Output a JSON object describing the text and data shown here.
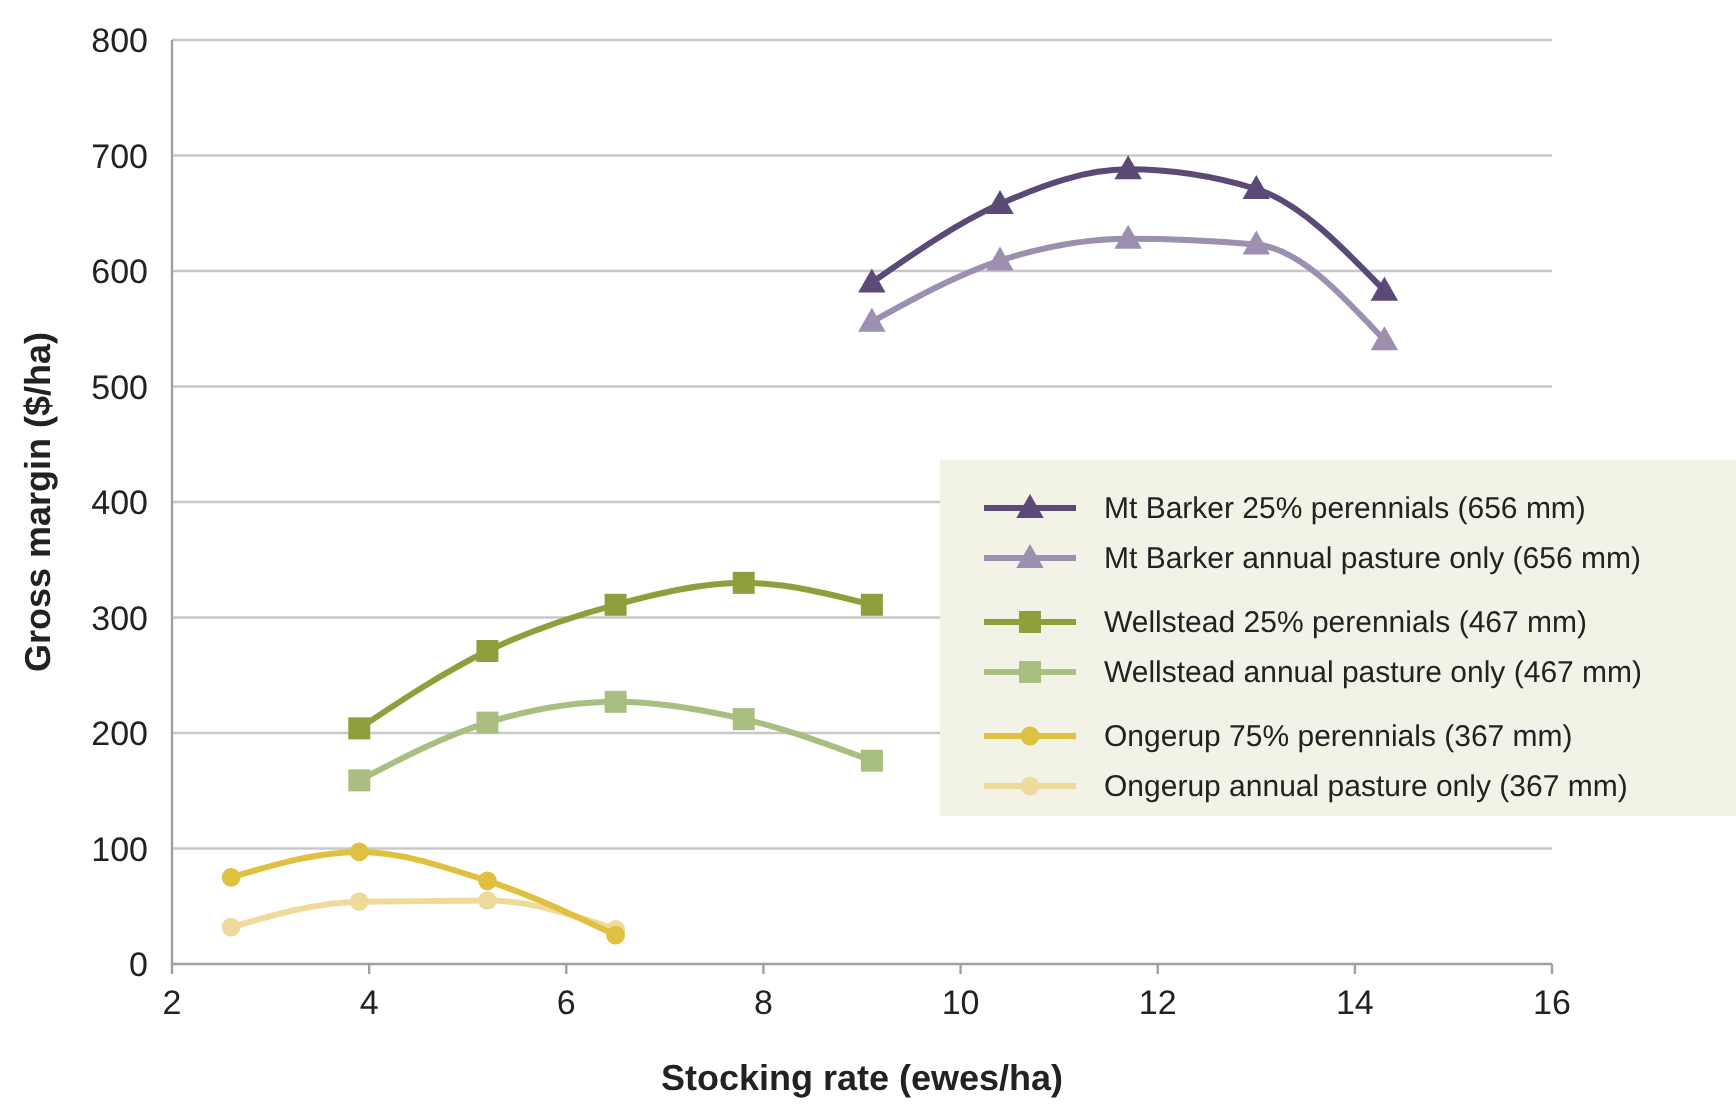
{
  "chart_data": {
    "type": "line",
    "xlabel": "Stocking rate (ewes/ha)",
    "ylabel": "Gross margin ($/ha)",
    "xlim": [
      2,
      16
    ],
    "xticks": [
      2,
      4,
      6,
      8,
      10,
      12,
      14,
      16
    ],
    "ylim": [
      0,
      800
    ],
    "yticks": [
      0,
      100,
      200,
      300,
      400,
      500,
      600,
      700,
      800
    ],
    "grid": "y",
    "legend": "right",
    "line_style": "solid",
    "series": [
      {
        "name": "Mt Barker 25% perennials (656 mm)",
        "color": "#5b4a78",
        "marker": "triangle",
        "x": [
          9.1,
          10.4,
          11.7,
          13.0,
          14.3
        ],
        "values": [
          590,
          658,
          688,
          671,
          583
        ]
      },
      {
        "name": "Mt Barker annual pasture only (656 mm)",
        "color": "#9c8fb0",
        "marker": "triangle",
        "x": [
          9.1,
          10.4,
          11.7,
          13.0,
          14.3
        ],
        "values": [
          556,
          609,
          628,
          623,
          540
        ]
      },
      {
        "name": "Wellstead 25% perennials (467 mm)",
        "color": "#8da03c",
        "marker": "square",
        "x": [
          3.9,
          5.2,
          6.5,
          7.8,
          9.1
        ],
        "values": [
          204,
          271,
          311,
          330,
          311
        ]
      },
      {
        "name": "Wellstead annual pasture only (467 mm)",
        "color": "#a9bf82",
        "marker": "square",
        "x": [
          3.9,
          5.2,
          6.5,
          7.8,
          9.1
        ],
        "values": [
          159,
          209,
          227,
          212,
          176
        ]
      },
      {
        "name": "Ongerup 75% perennials (367 mm)",
        "color": "#e0c040",
        "marker": "circle",
        "x": [
          2.6,
          3.9,
          5.2,
          6.5
        ],
        "values": [
          75,
          97,
          72,
          25
        ]
      },
      {
        "name": "Ongerup annual pasture only (367 mm)",
        "color": "#eedb9c",
        "marker": "circle",
        "x": [
          2.6,
          3.9,
          5.2,
          6.5
        ],
        "values": [
          32,
          54,
          55,
          30
        ]
      }
    ]
  }
}
